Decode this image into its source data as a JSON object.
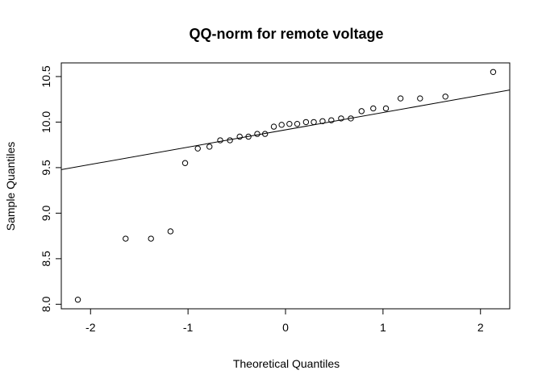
{
  "chart_data": {
    "type": "scatter",
    "title": "QQ-norm for remote voltage",
    "xlabel": "Theoretical Quantiles",
    "ylabel": "Sample Quantiles",
    "xlim": [
      -2.3,
      2.3
    ],
    "ylim": [
      7.95,
      10.65
    ],
    "xticks": [
      -2,
      -1,
      0,
      1,
      2
    ],
    "yticks": [
      8.0,
      8.5,
      9.0,
      9.5,
      10.0,
      10.5
    ],
    "xtick_labels": [
      "-2",
      "-1",
      "0",
      "1",
      "2"
    ],
    "ytick_labels": [
      "8.0",
      "8.5",
      "9.0",
      "9.5",
      "10.0",
      "10.5"
    ],
    "grid": false,
    "marker": "open-circle",
    "series": [
      {
        "points": [
          [
            -2.13,
            8.05
          ],
          [
            -1.64,
            8.72
          ],
          [
            -1.38,
            8.72
          ],
          [
            -1.18,
            8.8
          ],
          [
            -1.03,
            9.55
          ],
          [
            -0.9,
            9.71
          ],
          [
            -0.78,
            9.73
          ],
          [
            -0.67,
            9.8
          ],
          [
            -0.57,
            9.8
          ],
          [
            -0.47,
            9.84
          ],
          [
            -0.38,
            9.84
          ],
          [
            -0.29,
            9.87
          ],
          [
            -0.21,
            9.87
          ],
          [
            -0.12,
            9.95
          ],
          [
            -0.04,
            9.97
          ],
          [
            0.04,
            9.98
          ],
          [
            0.12,
            9.98
          ],
          [
            0.21,
            10.0
          ],
          [
            0.29,
            10.0
          ],
          [
            0.38,
            10.01
          ],
          [
            0.47,
            10.02
          ],
          [
            0.57,
            10.04
          ],
          [
            0.67,
            10.04
          ],
          [
            0.78,
            10.12
          ],
          [
            0.9,
            10.15
          ],
          [
            1.03,
            10.15
          ],
          [
            1.18,
            10.26
          ],
          [
            1.38,
            10.26
          ],
          [
            1.64,
            10.28
          ],
          [
            2.13,
            10.55
          ]
        ]
      }
    ],
    "reference_line": {
      "intercept": 9.915,
      "slope": 0.19
    }
  }
}
